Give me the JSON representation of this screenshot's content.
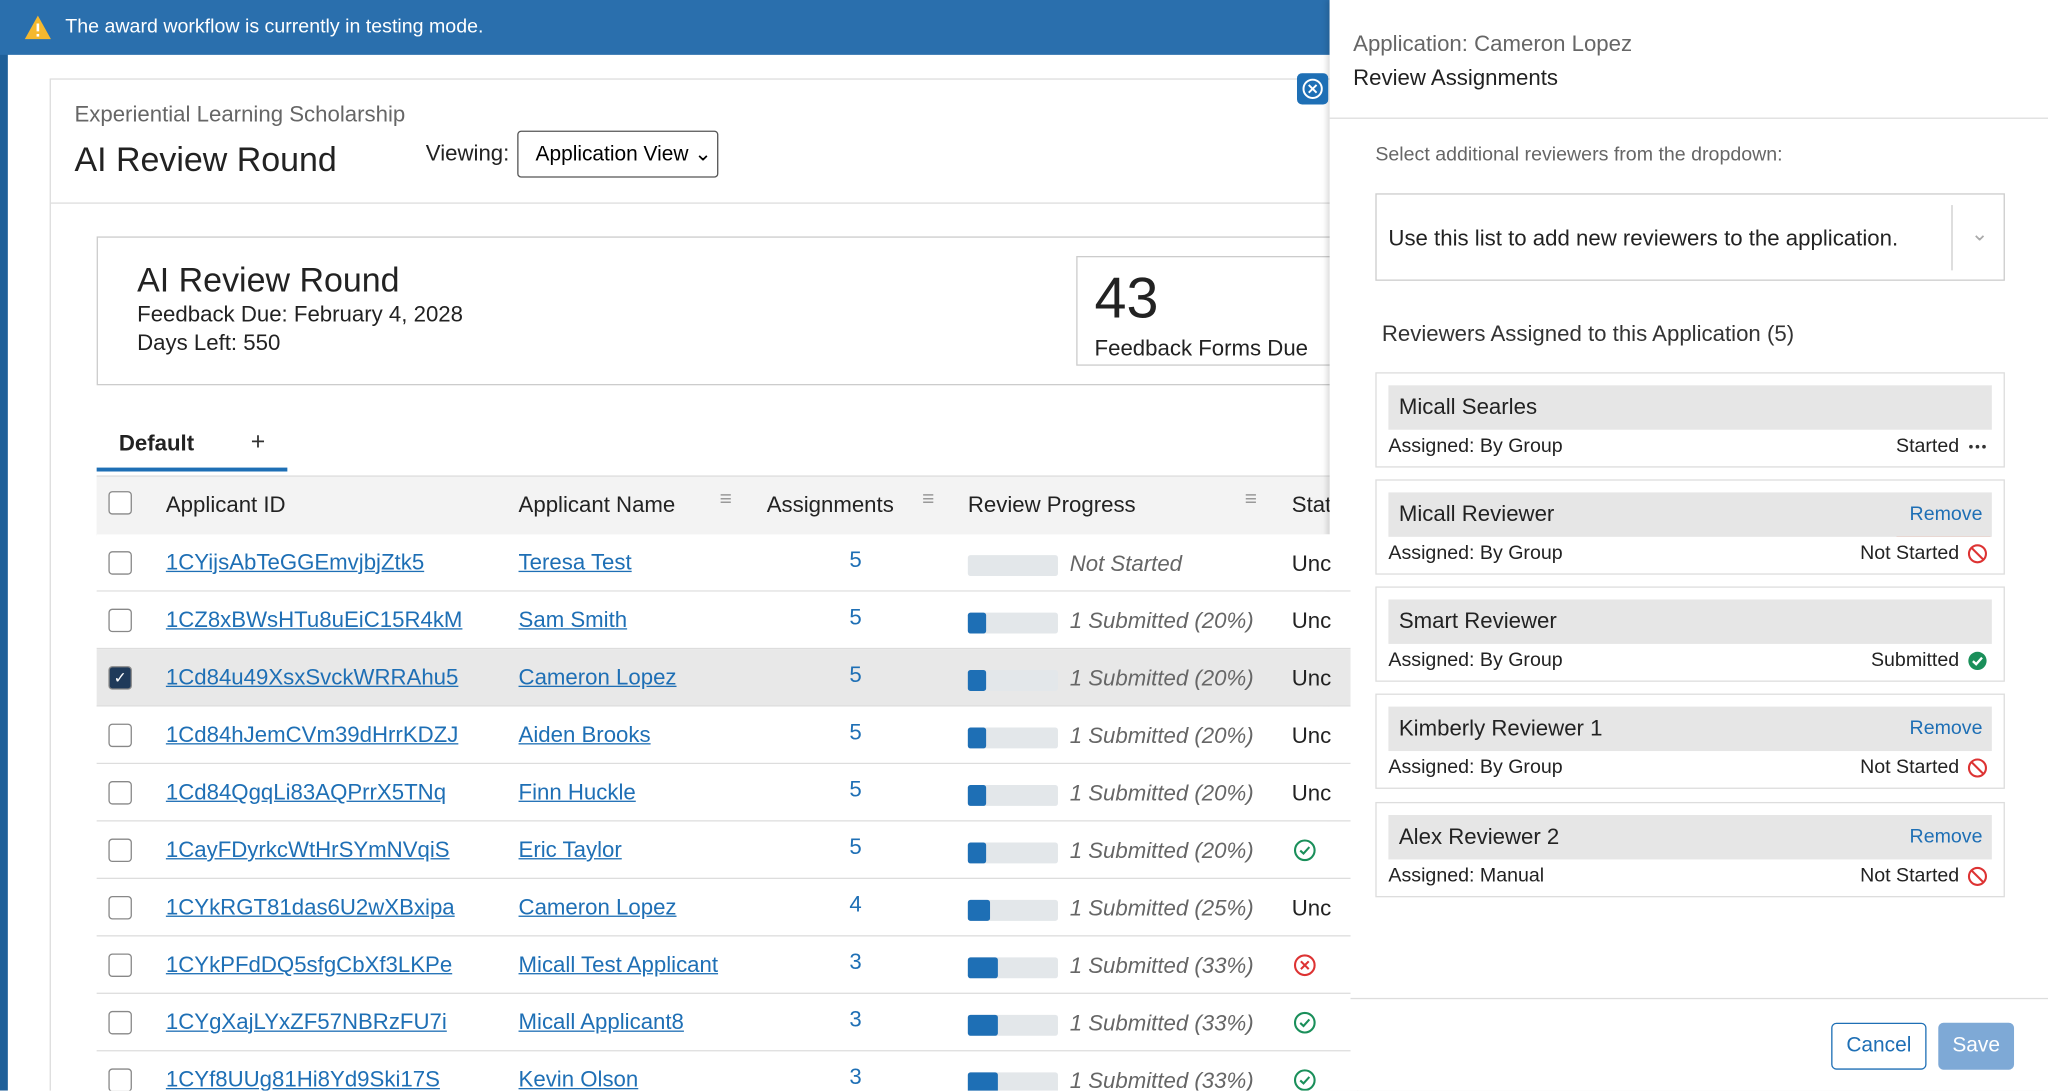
{
  "banner": {
    "text": "The award workflow is currently in testing mode."
  },
  "header": {
    "program": "Experiential Learning Scholarship",
    "round": "AI Review Round",
    "viewing_label": "Viewing:",
    "view_select": "Application View"
  },
  "summary": {
    "title": "AI Review Round",
    "feedback_due": "Feedback Due: February 4, 2028",
    "days_left": "Days Left: 550",
    "count": "43",
    "count_label": "Feedback Forms Due"
  },
  "tabs": [
    "Default",
    "+"
  ],
  "table": {
    "columns": [
      "Applicant ID",
      "Applicant Name",
      "Assignments",
      "Review Progress",
      "Stat"
    ],
    "rows": [
      {
        "id": "1CYijsAbTeGGEmvjbjZtk5",
        "name": "Teresa Test",
        "assignments": "5",
        "progress": 0,
        "progress_label": "Not Started",
        "status": "Unc",
        "status_icon": null,
        "checked": false
      },
      {
        "id": "1CZ8xBWsHTu8uEiC15R4kM",
        "name": "Sam Smith",
        "assignments": "5",
        "progress": 20,
        "progress_label": "1 Submitted (20%)",
        "status": "Unc",
        "status_icon": null,
        "checked": false
      },
      {
        "id": "1Cd84u49XsxSvckWRRAhu5",
        "name": "Cameron Lopez",
        "assignments": "5",
        "progress": 20,
        "progress_label": "1 Submitted (20%)",
        "status": "Unc",
        "status_icon": null,
        "checked": true
      },
      {
        "id": "1Cd84hJemCVm39dHrrKDZJ",
        "name": "Aiden Brooks",
        "assignments": "5",
        "progress": 20,
        "progress_label": "1 Submitted (20%)",
        "status": "Unc",
        "status_icon": null,
        "checked": false
      },
      {
        "id": "1Cd84QgqLi83AQPrrX5TNq",
        "name": "Finn Huckle",
        "assignments": "5",
        "progress": 20,
        "progress_label": "1 Submitted (20%)",
        "status": "Unc",
        "status_icon": null,
        "checked": false
      },
      {
        "id": "1CayFDyrkcWtHrSYmNVqiS",
        "name": "Eric Taylor",
        "assignments": "5",
        "progress": 20,
        "progress_label": "1 Submitted (20%)",
        "status": null,
        "status_icon": "check",
        "checked": false
      },
      {
        "id": "1CYkRGT81das6U2wXBxipa",
        "name": "Cameron Lopez",
        "assignments": "4",
        "progress": 25,
        "progress_label": "1 Submitted (25%)",
        "status": "Unc",
        "status_icon": null,
        "checked": false
      },
      {
        "id": "1CYkPFdDQ5sfgCbXf3LKPe",
        "name": "Micall Test Applicant",
        "assignments": "3",
        "progress": 33,
        "progress_label": "1 Submitted (33%)",
        "status": null,
        "status_icon": "cross",
        "checked": false
      },
      {
        "id": "1CYgXajLYxZF57NBRzFU7i",
        "name": "Micall Applicant8",
        "assignments": "3",
        "progress": 33,
        "progress_label": "1 Submitted (33%)",
        "status": null,
        "status_icon": "check",
        "checked": false
      },
      {
        "id": "1CYf8UUg81Hi8Yd9Ski17S",
        "name": "Kevin Olson",
        "assignments": "3",
        "progress": 33,
        "progress_label": "1 Submitted (33%)",
        "status": null,
        "status_icon": "check",
        "checked": false
      }
    ]
  },
  "panel": {
    "subtitle": "Application: Cameron Lopez",
    "title": "Review Assignments",
    "instruction": "Select additional reviewers from the dropdown:",
    "dropdown_placeholder": "Use this list to add new reviewers to the application.",
    "assigned_heading": "Reviewers Assigned to this Application (5)",
    "reviewers": [
      {
        "name": "Micall Searles",
        "assigned": "Assigned: By Group",
        "status": "Started",
        "action": null,
        "status_icon": "more"
      },
      {
        "name": "Micall Reviewer",
        "assigned": "Assigned: By Group",
        "status": "Not Started",
        "action": "Remove",
        "status_icon": "blocked"
      },
      {
        "name": "Smart Reviewer",
        "assigned": "Assigned: By Group",
        "status": "Submitted",
        "action": null,
        "status_icon": "check"
      },
      {
        "name": "Kimberly Reviewer 1",
        "assigned": "Assigned: By Group",
        "status": "Not Started",
        "action": "Remove",
        "status_icon": "blocked"
      },
      {
        "name": "Alex Reviewer 2",
        "assigned": "Assigned: Manual",
        "status": "Not Started",
        "action": "Remove",
        "status_icon": "blocked"
      }
    ],
    "cancel": "Cancel",
    "save": "Save"
  }
}
